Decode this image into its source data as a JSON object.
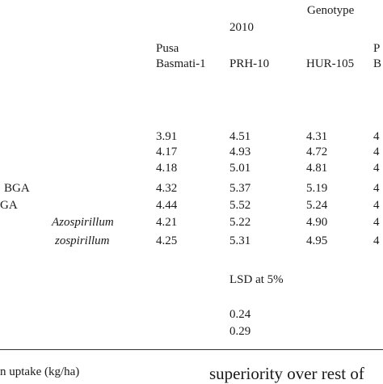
{
  "header": {
    "genotype": "Genotype",
    "year": "2010",
    "columns": [
      {
        "line1": "Pusa",
        "line2": "Basmati-1"
      },
      {
        "line1": "",
        "line2": "PRH-10"
      },
      {
        "line1": "",
        "line2": "HUR-105"
      },
      {
        "line1": "P",
        "line2": "B"
      }
    ]
  },
  "rows": [
    {
      "label": "",
      "italic": false,
      "values": [
        "3.91",
        "4.51",
        "4.31",
        "4"
      ]
    },
    {
      "label": "",
      "italic": false,
      "values": [
        "4.17",
        "4.93",
        "4.72",
        "4"
      ]
    },
    {
      "label": "",
      "italic": false,
      "values": [
        "4.18",
        "5.01",
        "4.81",
        "4"
      ]
    },
    {
      "label": "BGA",
      "italic": false,
      "values": [
        "4.32",
        "5.37",
        "5.19",
        "4"
      ]
    },
    {
      "label": "GA",
      "italic": false,
      "values": [
        "4.44",
        "5.52",
        "5.24",
        "4"
      ]
    },
    {
      "label": "Azospirillum",
      "italic": true,
      "values": [
        "4.21",
        "5.22",
        "4.90",
        "4"
      ]
    },
    {
      "label": "zospirillum",
      "italic": true,
      "values": [
        "4.25",
        "5.31",
        "4.95",
        "4"
      ]
    }
  ],
  "lsd": {
    "label": "LSD at 5%",
    "values": [
      "0.24",
      "0.29"
    ]
  },
  "footer": {
    "caption_left": "n uptake (kg/ha)",
    "text_right": "superiority over rest of"
  }
}
